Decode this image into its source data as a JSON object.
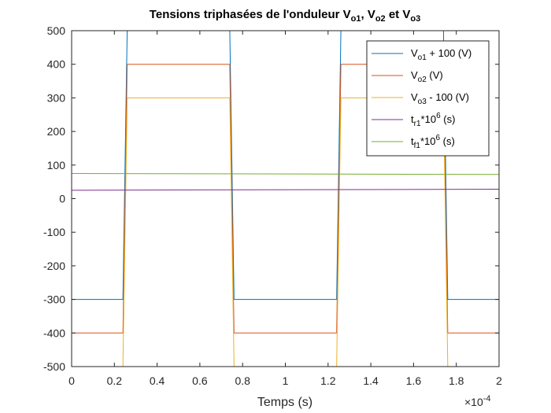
{
  "chart_data": {
    "type": "line",
    "title": {
      "prefix": "Tensions triphasées de l'onduleur V",
      "sub1": "o1",
      "sep1": ", V",
      "sub2": "o2",
      "sep2": " et V",
      "sub3": "o3"
    },
    "xlabel": "Temps (s)",
    "x_exponent": {
      "base": "×10",
      "power": "-4"
    },
    "ylabel": "",
    "xlim": [
      0,
      2
    ],
    "ylim": [
      -500,
      500
    ],
    "x_ticks": [
      0,
      0.2,
      0.4,
      0.6,
      0.8,
      1,
      1.2,
      1.4,
      1.6,
      1.8,
      2
    ],
    "x_tick_labels": [
      "0",
      "0.2",
      "0.4",
      "0.6",
      "0.8",
      "1",
      "1.2",
      "1.4",
      "1.6",
      "1.8",
      "2"
    ],
    "y_ticks": [
      -500,
      -400,
      -300,
      -200,
      -100,
      0,
      100,
      200,
      300,
      400,
      500
    ],
    "y_tick_labels": [
      "-500",
      "-400",
      "-300",
      "-200",
      "-100",
      "0",
      "100",
      "200",
      "300",
      "400",
      "500"
    ],
    "grid": false,
    "legend_position": "top-right",
    "series": [
      {
        "color": "#0072BD",
        "legend": {
          "main": "V",
          "sub": "o1",
          "sup": "",
          "rest": " + 100 (V)"
        },
        "x": [
          0,
          0.24,
          0.26,
          0.74,
          0.76,
          1.24,
          1.26,
          1.74,
          1.76,
          2
        ],
        "y": [
          -300,
          -300,
          500,
          500,
          -300,
          -300,
          500,
          500,
          -300,
          -300
        ]
      },
      {
        "color": "#D95319",
        "legend": {
          "main": "V",
          "sub": "o2",
          "sup": "",
          "rest": " (V)"
        },
        "x": [
          0,
          0.24,
          0.26,
          0.74,
          0.76,
          1.24,
          1.26,
          1.74,
          1.76,
          2
        ],
        "y": [
          -400,
          -400,
          400,
          400,
          -400,
          -400,
          400,
          400,
          -400,
          -400
        ]
      },
      {
        "color": "#EDB120",
        "legend": {
          "main": "V",
          "sub": "o3",
          "sup": "",
          "rest": " - 100 (V)"
        },
        "x": [
          0,
          0.24,
          0.26,
          0.74,
          0.76,
          1.24,
          1.26,
          1.74,
          1.76,
          2
        ],
        "y": [
          -500,
          -500,
          300,
          300,
          -500,
          -500,
          300,
          300,
          -500,
          -500
        ]
      },
      {
        "color": "#7E2F8E",
        "legend": {
          "main": "t",
          "sub": "r1",
          "sup": "6",
          "rest": " (s)",
          "mid": "*10"
        },
        "x": [
          0,
          2
        ],
        "y": [
          25,
          28
        ]
      },
      {
        "color": "#77AC30",
        "legend": {
          "main": "t",
          "sub": "f1",
          "sup": "6",
          "rest": " (s)",
          "mid": "*10"
        },
        "x": [
          0,
          2
        ],
        "y": [
          75,
          72
        ]
      }
    ]
  }
}
